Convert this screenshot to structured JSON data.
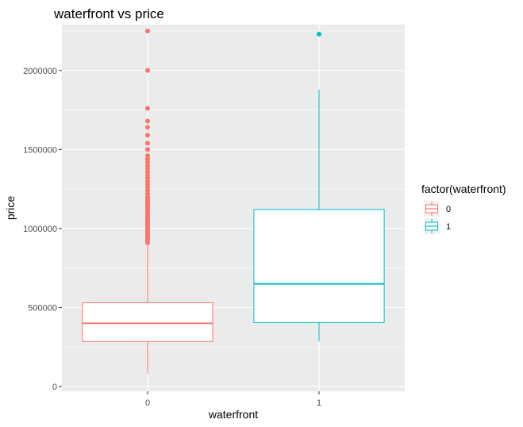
{
  "chart_data": {
    "type": "boxplot",
    "title": "waterfront vs price",
    "xlabel": "waterfront",
    "ylabel": "price",
    "categories": [
      "0",
      "1"
    ],
    "ylim": [
      -30000,
      2290000
    ],
    "y_ticks": [
      0,
      500000,
      1000000,
      1500000,
      2000000
    ],
    "y_tick_labels": [
      "0",
      "500000",
      "1000000",
      "1500000",
      "2000000"
    ],
    "grid": true,
    "legend": {
      "title": "factor(waterfront)",
      "position": "right",
      "entries": [
        "0",
        "1"
      ]
    },
    "colors": {
      "0": "#F8766D",
      "1": "#00BFC4"
    },
    "series": [
      {
        "name": "0",
        "whisker_low": 80000,
        "q1": 285000,
        "median": 400000,
        "q3": 530000,
        "whisker_high": 900000,
        "outliers": [
          910000,
          920000,
          930000,
          940000,
          950000,
          960000,
          970000,
          980000,
          990000,
          1000000,
          1010000,
          1020000,
          1030000,
          1040000,
          1050000,
          1060000,
          1070000,
          1080000,
          1090000,
          1100000,
          1110000,
          1120000,
          1130000,
          1140000,
          1150000,
          1160000,
          1170000,
          1180000,
          1190000,
          1200000,
          1220000,
          1240000,
          1260000,
          1280000,
          1300000,
          1320000,
          1340000,
          1360000,
          1380000,
          1400000,
          1420000,
          1440000,
          1460000,
          1500000,
          1540000,
          1590000,
          1640000,
          1680000,
          1760000,
          2000000,
          2250000
        ]
      },
      {
        "name": "1",
        "whisker_low": 285000,
        "q1": 405000,
        "median": 650000,
        "q3": 1120000,
        "whisker_high": 1880000,
        "outliers": [
          2230000
        ]
      }
    ]
  }
}
